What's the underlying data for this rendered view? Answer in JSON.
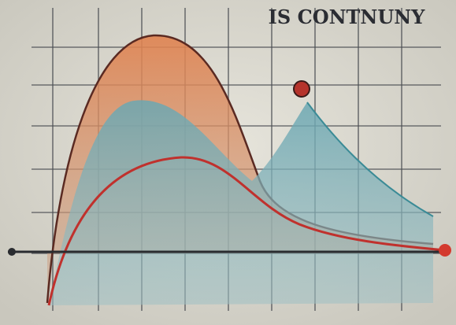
{
  "header": {
    "title": "IS CONTNUNY"
  }
}
